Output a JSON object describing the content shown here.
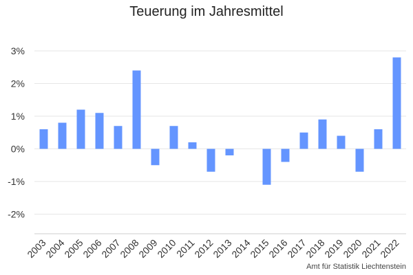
{
  "chart_data": {
    "type": "bar",
    "title": "Teuerung im Jahresmittel",
    "categories": [
      "2003",
      "2004",
      "2005",
      "2006",
      "2007",
      "2008",
      "2009",
      "2010",
      "2011",
      "2012",
      "2013",
      "2014",
      "2015",
      "2016",
      "2017",
      "2018",
      "2019",
      "2020",
      "2021",
      "2022"
    ],
    "values": [
      0.6,
      0.8,
      1.2,
      1.1,
      0.7,
      2.4,
      -0.5,
      0.7,
      0.2,
      -0.7,
      -0.2,
      0.0,
      -1.1,
      -0.4,
      0.5,
      0.9,
      0.4,
      -0.7,
      0.6,
      2.8
    ],
    "ylim": [
      -2.6,
      3.4
    ],
    "yticks": [
      -2,
      -1,
      0,
      1,
      2,
      3
    ],
    "ytick_labels": [
      "-2%",
      "-1%",
      "0%",
      "1%",
      "2%",
      "3%"
    ],
    "xlabel": "",
    "ylabel": "",
    "grid": true,
    "bar_color": "#6495ff",
    "grid_color": "#e6e6e6"
  },
  "credit": "Amt für Statistik Liechtenstein"
}
